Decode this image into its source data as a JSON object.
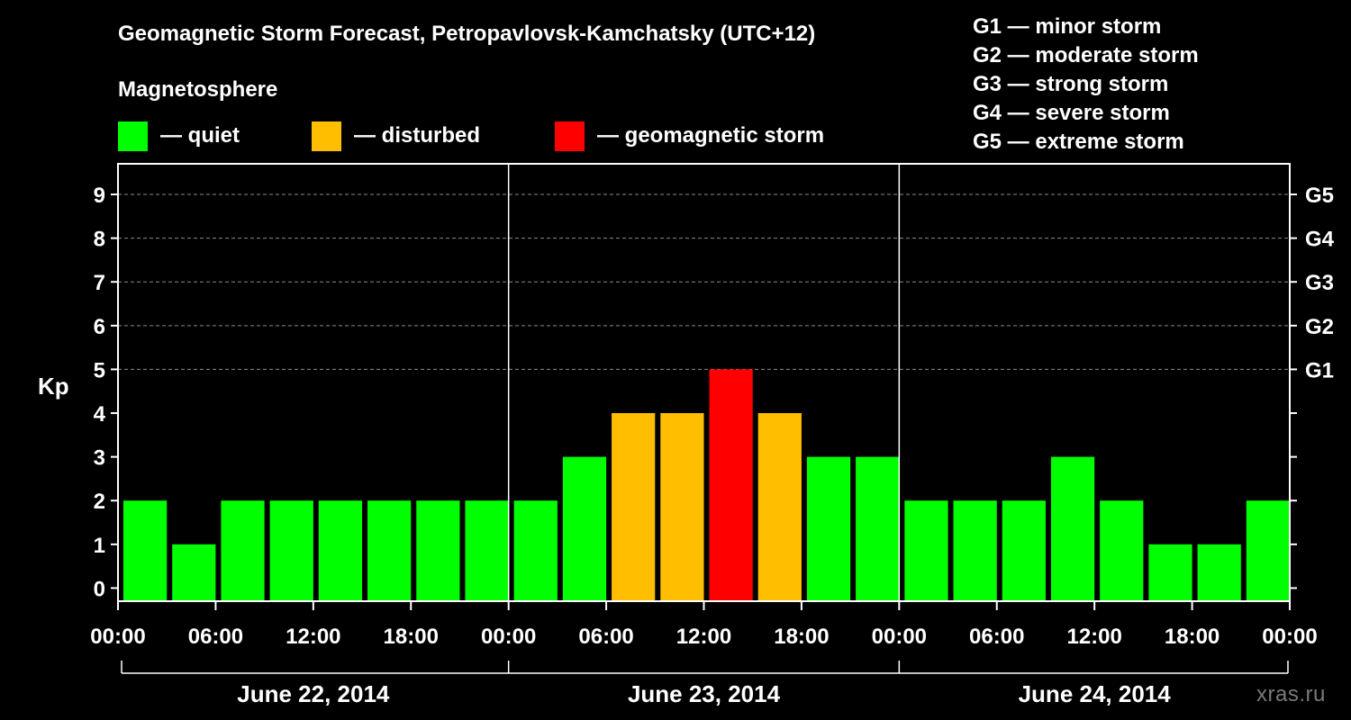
{
  "chart_data": {
    "type": "bar",
    "title": "Geomagnetic Storm Forecast, Petropavlovsk-Kamchatsky (UTC+12)",
    "ylabel": "Kp",
    "ylim": [
      -0.3,
      9.7
    ],
    "y_ticks": [
      0,
      1,
      2,
      3,
      4,
      5,
      6,
      7,
      8,
      9
    ],
    "grid_levels": [
      5,
      6,
      7,
      8,
      9
    ],
    "x_tick_labels": [
      "00:00",
      "06:00",
      "12:00",
      "18:00",
      "00:00",
      "06:00",
      "12:00",
      "18:00",
      "00:00",
      "06:00",
      "12:00",
      "18:00",
      "00:00"
    ],
    "days": [
      "June 22, 2014",
      "June 23, 2014",
      "June 24, 2014"
    ],
    "values": [
      2,
      1,
      2,
      2,
      2,
      2,
      2,
      2,
      2,
      3,
      4,
      4,
      5,
      4,
      3,
      3,
      2,
      2,
      2,
      3,
      2,
      1,
      1,
      2
    ],
    "right_axis": [
      {
        "kp": 5,
        "label": "G1"
      },
      {
        "kp": 6,
        "label": "G2"
      },
      {
        "kp": 7,
        "label": "G3"
      },
      {
        "kp": 8,
        "label": "G4"
      },
      {
        "kp": 9,
        "label": "G5"
      }
    ]
  },
  "legend": {
    "heading": "Magnetosphere",
    "items": [
      {
        "label": "— quiet",
        "color": "#00ff00"
      },
      {
        "label": "— disturbed",
        "color": "#ffbf00"
      },
      {
        "label": "— geomagnetic storm",
        "color": "#ff0000"
      }
    ]
  },
  "g_scale": [
    "G1 — minor storm",
    "G2 — moderate storm",
    "G3 — strong storm",
    "G4 — severe storm",
    "G5 — extreme storm"
  ],
  "watermark": "xras.ru"
}
